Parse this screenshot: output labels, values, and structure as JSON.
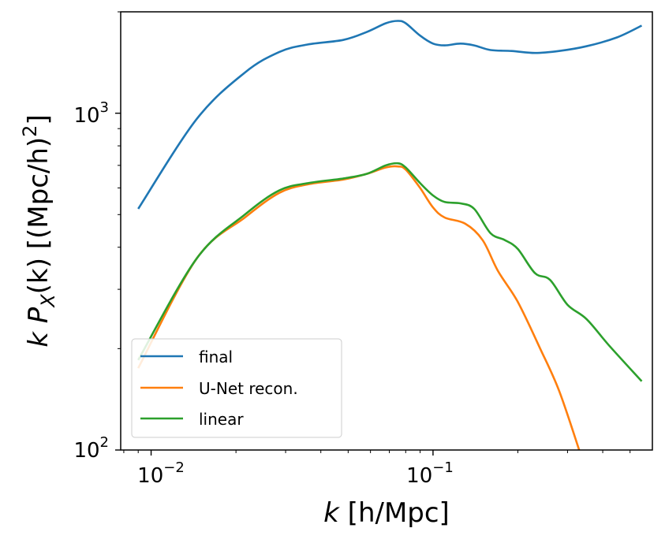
{
  "chart_data": {
    "type": "line",
    "title": "",
    "xlabel_var": "k",
    "xlabel_unit": " [h/Mpc]",
    "ylabel_prefix": "k P",
    "ylabel_sub": "X",
    "ylabel_mid": "(k) [(Mpc/h)",
    "ylabel_sup": "2",
    "ylabel_end": "]",
    "xscale": "log",
    "yscale": "log",
    "xlim": [
      0.0078,
      0.6
    ],
    "ylim": [
      100,
      2000
    ],
    "x_ticks": [
      {
        "value": 0.01,
        "base": "10",
        "exp": "−2"
      },
      {
        "value": 0.1,
        "base": "10",
        "exp": "−1"
      }
    ],
    "y_ticks": [
      {
        "value": 100,
        "base": "10",
        "exp": "2"
      },
      {
        "value": 1000,
        "base": "10",
        "exp": "3"
      }
    ],
    "legend_position": "lower-left",
    "series": [
      {
        "name": "final",
        "color": "#1f77b4",
        "x": [
          0.009,
          0.0145,
          0.0215,
          0.0285,
          0.036,
          0.048,
          0.058,
          0.068,
          0.075,
          0.08,
          0.09,
          0.1,
          0.11,
          0.125,
          0.14,
          0.16,
          0.19,
          0.23,
          0.28,
          0.35,
          0.45,
          0.55
        ],
        "y": [
          520,
          960,
          1320,
          1520,
          1600,
          1650,
          1740,
          1850,
          1880,
          1850,
          1700,
          1610,
          1590,
          1610,
          1590,
          1540,
          1530,
          1510,
          1530,
          1580,
          1680,
          1820
        ]
      },
      {
        "name": "U-Net recon.",
        "color": "#ff7f0e",
        "x": [
          0.009,
          0.0145,
          0.0215,
          0.0285,
          0.036,
          0.048,
          0.058,
          0.068,
          0.075,
          0.08,
          0.09,
          0.1,
          0.11,
          0.13,
          0.15,
          0.17,
          0.2,
          0.24,
          0.28,
          0.33
        ],
        "y": [
          175,
          370,
          490,
          580,
          615,
          635,
          660,
          690,
          695,
          680,
          600,
          525,
          490,
          470,
          420,
          340,
          275,
          200,
          150,
          100
        ]
      },
      {
        "name": "linear",
        "color": "#2ca02c",
        "x": [
          0.009,
          0.0145,
          0.0215,
          0.0285,
          0.036,
          0.048,
          0.058,
          0.068,
          0.075,
          0.08,
          0.09,
          0.1,
          0.11,
          0.125,
          0.14,
          0.16,
          0.18,
          0.2,
          0.23,
          0.26,
          0.3,
          0.35,
          0.42,
          0.55
        ],
        "y": [
          185,
          370,
          500,
          590,
          620,
          640,
          660,
          700,
          710,
          690,
          620,
          570,
          545,
          540,
          520,
          440,
          420,
          395,
          335,
          320,
          270,
          245,
          205,
          160
        ]
      }
    ]
  }
}
